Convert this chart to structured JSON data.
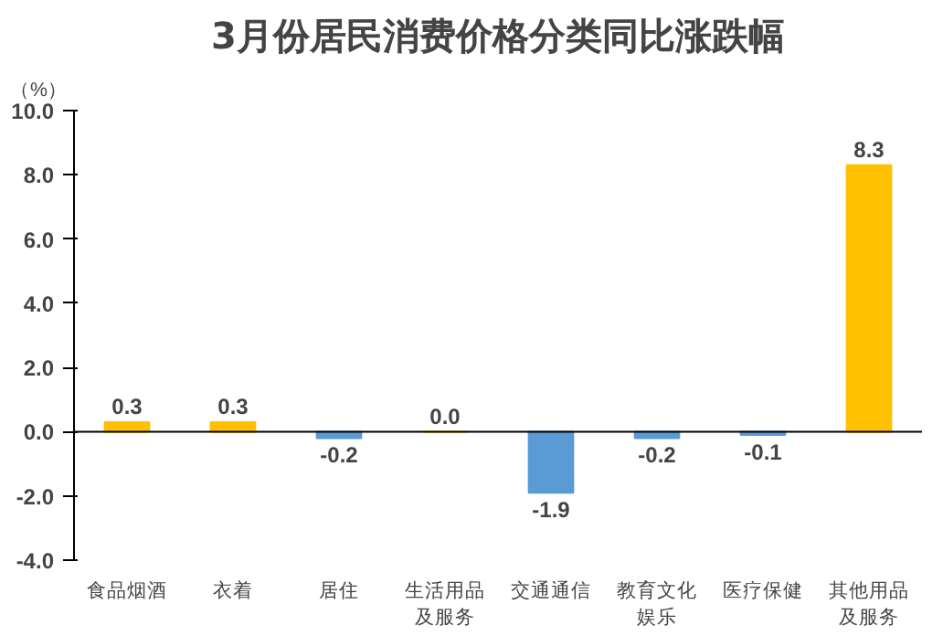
{
  "chart_data": {
    "type": "bar",
    "title": "3月份居民消费价格分类同比涨跌幅",
    "ylabel": "（%）",
    "categories": [
      "食品烟酒",
      "衣着",
      "居住",
      "生活用品及服务",
      "交通通信",
      "教育文化娱乐",
      "医疗保健",
      "其他用品及服务"
    ],
    "values": [
      0.3,
      0.3,
      -0.2,
      0.0,
      -1.9,
      -0.2,
      -0.1,
      8.3
    ],
    "colors": [
      "#ffc000",
      "#ffc000",
      "#5b9bd5",
      "#ffc000",
      "#5b9bd5",
      "#5b9bd5",
      "#5b9bd5",
      "#ffc000"
    ],
    "value_labels": [
      "0.3",
      "0.3",
      "-0.2",
      "0.0",
      "-1.9",
      "-0.2",
      "-0.1",
      "8.3"
    ],
    "ylim": [
      -4,
      10
    ],
    "yticks": [
      {
        "value": -4,
        "label": "-4.0"
      },
      {
        "value": -2,
        "label": "-2.0"
      },
      {
        "value": 0,
        "label": "0.0"
      },
      {
        "value": 2,
        "label": "2.0"
      },
      {
        "value": 4,
        "label": "4.0"
      },
      {
        "value": 6,
        "label": "6.0"
      },
      {
        "value": 8,
        "label": "8.0"
      },
      {
        "value": 10,
        "label": "10.0"
      }
    ],
    "ref_lines": [
      {
        "axis": "y",
        "value": 0,
        "color": "#000000"
      }
    ]
  }
}
